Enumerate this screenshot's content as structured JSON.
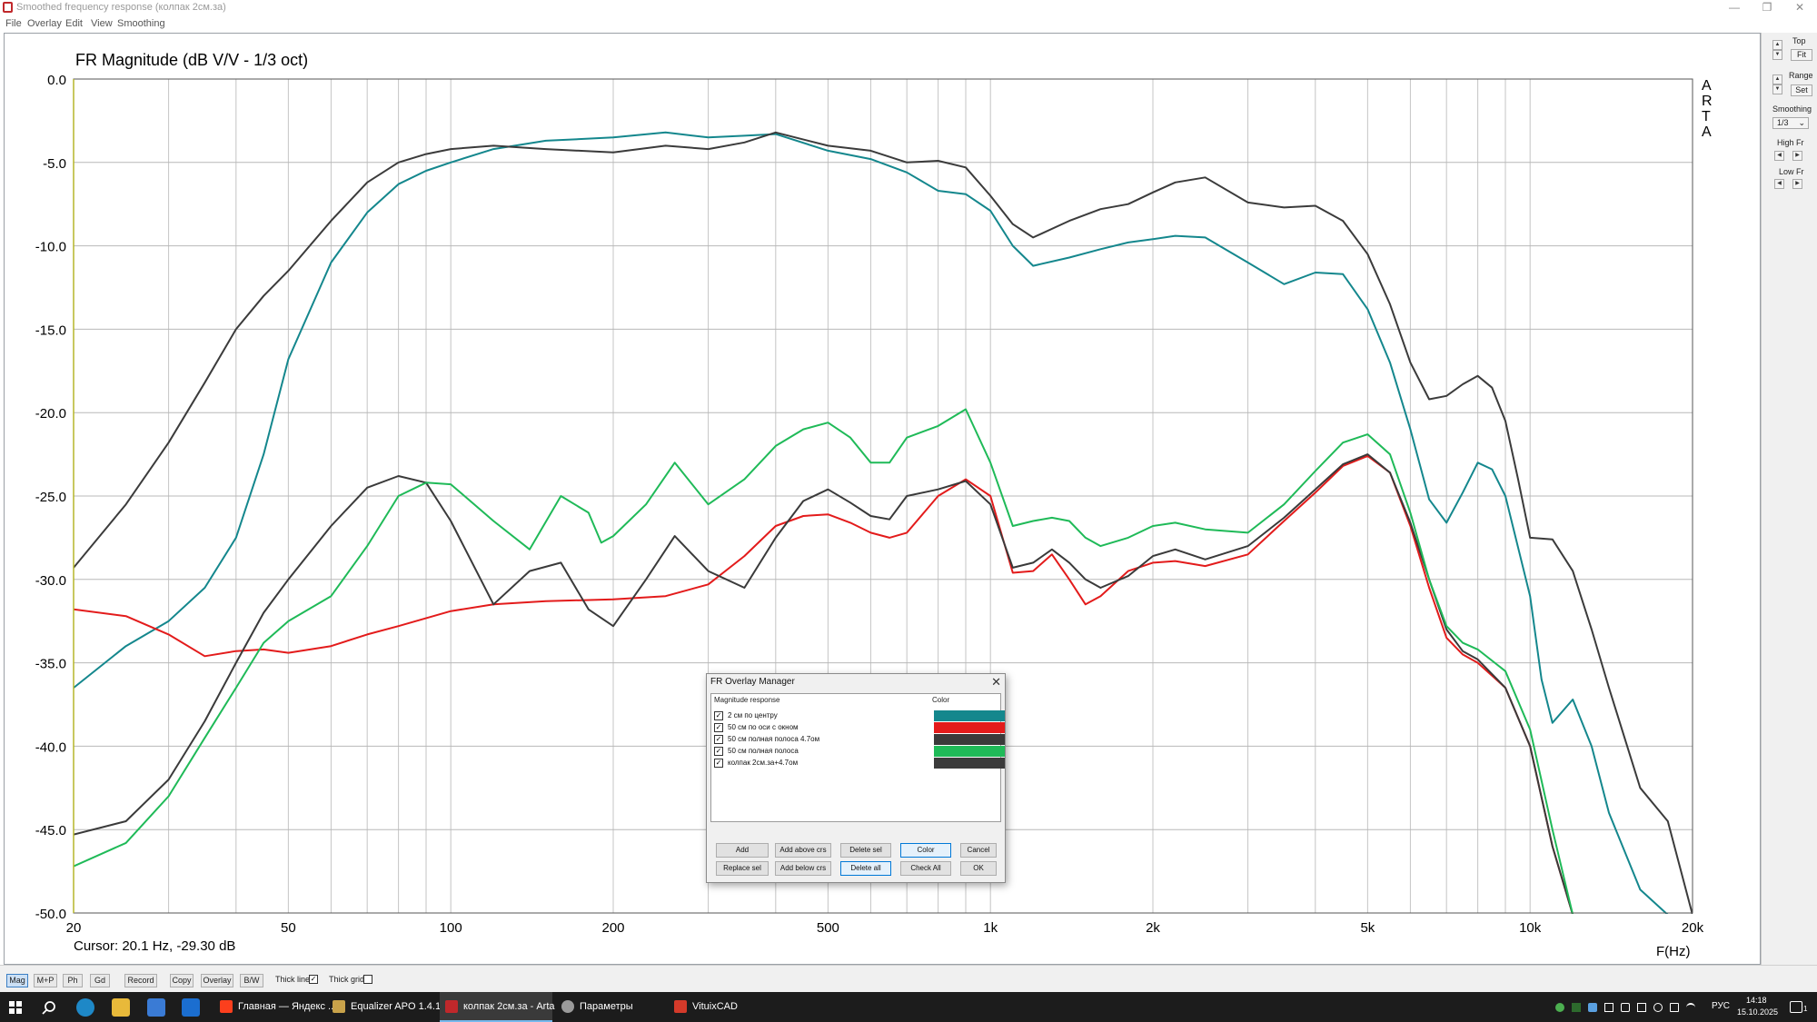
{
  "window": {
    "title": "Smoothed frequency response (колпак 2см.за)",
    "minimize": "—",
    "restore": "❐",
    "close": "✕"
  },
  "menu": [
    "File",
    "Overlay",
    "Edit",
    "View",
    "Smoothing"
  ],
  "chart_data": {
    "type": "line",
    "title": "FR Magnitude (dB V/V - 1/3 oct)",
    "xlabel": "F(Hz)",
    "ylabel": "",
    "x_scale": "log",
    "xlim": [
      20,
      20000
    ],
    "ylim": [
      -50,
      0
    ],
    "grid": true,
    "x_ticks": [
      {
        "value": 20,
        "label": "20"
      },
      {
        "value": 50,
        "label": "50"
      },
      {
        "value": 100,
        "label": "100"
      },
      {
        "value": 200,
        "label": "200"
      },
      {
        "value": 500,
        "label": "500"
      },
      {
        "value": 1000,
        "label": "1k"
      },
      {
        "value": 2000,
        "label": "2k"
      },
      {
        "value": 5000,
        "label": "5k"
      },
      {
        "value": 10000,
        "label": "10k"
      },
      {
        "value": 20000,
        "label": "20k"
      }
    ],
    "y_ticks": [
      {
        "value": 0,
        "label": "0.0"
      },
      {
        "value": -5,
        "label": "-5.0"
      },
      {
        "value": -10,
        "label": "-10.0"
      },
      {
        "value": -15,
        "label": "-15.0"
      },
      {
        "value": -20,
        "label": "-20.0"
      },
      {
        "value": -25,
        "label": "-25.0"
      },
      {
        "value": -30,
        "label": "-30.0"
      },
      {
        "value": -35,
        "label": "-35.0"
      },
      {
        "value": -40,
        "label": "-40.0"
      },
      {
        "value": -45,
        "label": "-45.0"
      },
      {
        "value": -50,
        "label": "-50.0"
      }
    ],
    "series": [
      {
        "name": "2 см по центру",
        "color": "#14878d",
        "x": [
          20,
          25,
          30,
          35,
          40,
          45,
          50,
          60,
          70,
          80,
          90,
          100,
          120,
          150,
          200,
          250,
          300,
          350,
          400,
          500,
          600,
          700,
          800,
          900,
          1000,
          1100,
          1200,
          1400,
          1600,
          1800,
          2000,
          2200,
          2500,
          3000,
          3500,
          4000,
          4500,
          5000,
          5500,
          6000,
          6500,
          7000,
          7500,
          8000,
          8500,
          9000,
          10000,
          10500,
          11000,
          12000,
          13000,
          14000,
          16000,
          18000,
          20000
        ],
        "y": [
          -36.5,
          -34.0,
          -32.5,
          -30.5,
          -27.5,
          -22.5,
          -16.8,
          -11.0,
          -8.0,
          -6.3,
          -5.5,
          -5.0,
          -4.2,
          -3.7,
          -3.5,
          -3.2,
          -3.5,
          -3.4,
          -3.3,
          -4.3,
          -4.8,
          -5.6,
          -6.7,
          -6.9,
          -7.9,
          -10.0,
          -11.2,
          -10.7,
          -10.2,
          -9.8,
          -9.6,
          -9.4,
          -9.5,
          -11.0,
          -12.3,
          -11.6,
          -11.7,
          -13.8,
          -17.0,
          -21.0,
          -25.2,
          -26.6,
          -24.8,
          -23.0,
          -23.4,
          -25.0,
          -31.0,
          -36.0,
          -38.6,
          -37.2,
          -40.0,
          -44.0,
          -48.6,
          -50.2,
          -51.0
        ]
      },
      {
        "name": "50 см по оси с окном",
        "color": "#e31b1b",
        "x": [
          20,
          25,
          30,
          35,
          40,
          45,
          50,
          60,
          70,
          80,
          100,
          120,
          150,
          200,
          250,
          300,
          350,
          400,
          450,
          500,
          550,
          600,
          650,
          700,
          800,
          900,
          1000,
          1100,
          1200,
          1300,
          1400,
          1500,
          1600,
          1800,
          2000,
          2200,
          2500,
          3000,
          3500,
          4000,
          4500,
          5000,
          5500,
          6000,
          6500,
          7000,
          7500,
          8000,
          9000,
          10000,
          11000,
          12000
        ],
        "y": [
          -31.8,
          -32.2,
          -33.3,
          -34.6,
          -34.3,
          -34.2,
          -34.4,
          -34.0,
          -33.3,
          -32.8,
          -31.9,
          -31.5,
          -31.3,
          -31.2,
          -31.0,
          -30.3,
          -28.6,
          -26.8,
          -26.2,
          -26.1,
          -26.6,
          -27.2,
          -27.5,
          -27.2,
          -25.0,
          -24.0,
          -25.0,
          -29.6,
          -29.5,
          -28.5,
          -30.0,
          -31.5,
          -31.0,
          -29.5,
          -29.0,
          -28.9,
          -29.2,
          -28.5,
          -26.5,
          -24.8,
          -23.2,
          -22.6,
          -23.6,
          -26.8,
          -30.5,
          -33.5,
          -34.5,
          -35.0,
          -36.5,
          -40.0,
          -46.0,
          -51.0
        ]
      },
      {
        "name": "50 см полная полоса 4.7ом",
        "color": "#3a3a3a",
        "x": [
          20,
          25,
          30,
          35,
          40,
          45,
          50,
          60,
          70,
          80,
          90,
          100,
          120,
          140,
          160,
          180,
          200,
          230,
          260,
          300,
          350,
          400,
          450,
          500,
          550,
          600,
          650,
          700,
          800,
          900,
          1000,
          1100,
          1200,
          1300,
          1400,
          1500,
          1600,
          1800,
          2000,
          2200,
          2500,
          3000,
          3500,
          4000,
          4500,
          5000,
          5500,
          6000,
          6500,
          7000,
          7500,
          8000,
          9000,
          10000,
          11000,
          12000
        ],
        "y": [
          -45.3,
          -44.5,
          -42.0,
          -38.5,
          -35.0,
          -32.0,
          -30.0,
          -26.8,
          -24.5,
          -23.8,
          -24.2,
          -26.5,
          -31.5,
          -29.5,
          -29.0,
          -31.8,
          -32.8,
          -30.0,
          -27.4,
          -29.5,
          -30.5,
          -27.5,
          -25.3,
          -24.6,
          -25.4,
          -26.2,
          -26.4,
          -25.0,
          -24.6,
          -24.1,
          -25.5,
          -29.3,
          -29.0,
          -28.2,
          -29.0,
          -30.0,
          -30.5,
          -29.8,
          -28.6,
          -28.2,
          -28.8,
          -28.0,
          -26.3,
          -24.6,
          -23.1,
          -22.5,
          -23.6,
          -26.6,
          -30.0,
          -33.0,
          -34.3,
          -34.8,
          -36.5,
          -40.0,
          -46.0,
          -51.0
        ]
      },
      {
        "name": "50 см полная полоса",
        "color": "#1fba58",
        "x": [
          20,
          25,
          30,
          35,
          40,
          45,
          50,
          60,
          70,
          80,
          90,
          100,
          120,
          140,
          160,
          180,
          190,
          200,
          230,
          260,
          300,
          350,
          400,
          450,
          500,
          550,
          600,
          650,
          700,
          800,
          900,
          1000,
          1100,
          1200,
          1300,
          1400,
          1500,
          1600,
          1800,
          2000,
          2200,
          2500,
          3000,
          3500,
          4000,
          4500,
          5000,
          5500,
          6000,
          6500,
          7000,
          7500,
          8000,
          9000,
          10000,
          11000,
          12000
        ],
        "y": [
          -47.2,
          -45.8,
          -43.0,
          -39.5,
          -36.5,
          -33.8,
          -32.5,
          -31.0,
          -28.0,
          -25.0,
          -24.2,
          -24.3,
          -26.5,
          -28.2,
          -25.0,
          -26.0,
          -27.8,
          -27.4,
          -25.5,
          -23.0,
          -25.5,
          -24.0,
          -22.0,
          -21.0,
          -20.6,
          -21.5,
          -23.0,
          -23.0,
          -21.5,
          -20.8,
          -19.8,
          -23.0,
          -26.8,
          -26.5,
          -26.3,
          -26.5,
          -27.5,
          -28.0,
          -27.5,
          -26.8,
          -26.6,
          -27.0,
          -27.2,
          -25.5,
          -23.5,
          -21.8,
          -21.3,
          -22.5,
          -26.0,
          -30.0,
          -32.8,
          -33.8,
          -34.2,
          -35.5,
          -39.0,
          -45.0,
          -50.5
        ]
      },
      {
        "name": "колпак 2см.за+4.7ом",
        "color": "#3b3b3b",
        "x": [
          20,
          25,
          30,
          35,
          40,
          45,
          50,
          60,
          70,
          80,
          90,
          100,
          120,
          150,
          200,
          250,
          300,
          350,
          400,
          500,
          600,
          700,
          800,
          900,
          1000,
          1100,
          1200,
          1400,
          1600,
          1800,
          2000,
          2200,
          2500,
          3000,
          3500,
          4000,
          4500,
          5000,
          5500,
          6000,
          6500,
          7000,
          7500,
          8000,
          8500,
          9000,
          9500,
          10000,
          11000,
          12000,
          13000,
          14000,
          16000,
          18000,
          20000
        ],
        "y": [
          -29.3,
          -25.5,
          -21.8,
          -18.2,
          -15.0,
          -13.0,
          -11.5,
          -8.5,
          -6.2,
          -5.0,
          -4.5,
          -4.2,
          -4.0,
          -4.2,
          -4.4,
          -4.0,
          -4.2,
          -3.8,
          -3.2,
          -4.0,
          -4.3,
          -5.0,
          -4.9,
          -5.3,
          -7.0,
          -8.7,
          -9.5,
          -8.5,
          -7.8,
          -7.5,
          -6.8,
          -6.2,
          -5.9,
          -7.4,
          -7.7,
          -7.6,
          -8.5,
          -10.5,
          -13.5,
          -17.0,
          -19.2,
          -19.0,
          -18.3,
          -17.8,
          -18.5,
          -20.5,
          -24.0,
          -27.5,
          -27.6,
          -29.5,
          -33.0,
          -36.5,
          -42.5,
          -44.5,
          -50.5
        ]
      }
    ]
  },
  "plot": {
    "arta_label": [
      "A",
      "R",
      "T",
      "A"
    ],
    "cursor_readout": "Cursor: 20.1 Hz, -29.30 dB"
  },
  "right_panel": {
    "top_label": "Top",
    "fit_button": "Fit",
    "range_label": "Range",
    "set_button": "Set",
    "smoothing_label": "Smoothing",
    "smoothing_value": "1/3",
    "high_fr_label": "High Fr",
    "low_fr_label": "Low Fr"
  },
  "bottom_bar": {
    "buttons": [
      {
        "label": "Mag",
        "active": true
      },
      {
        "label": "M+P",
        "active": false
      },
      {
        "label": "Ph",
        "active": false
      },
      {
        "label": "Gd",
        "active": false
      },
      {
        "label": "Record",
        "active": false
      },
      {
        "label": "Copy",
        "active": false
      },
      {
        "label": "Overlay",
        "active": false
      },
      {
        "label": "B/W",
        "active": false
      }
    ],
    "thick_line_label": "Thick line",
    "thick_line_checked": "✓",
    "thick_grid_label": "Thick grid"
  },
  "dialog": {
    "title": "FR Overlay Manager",
    "close": "✕",
    "col_magnitude": "Magnitude response",
    "col_color": "Color",
    "rows": [
      {
        "name": "2 см по центру",
        "color": "#14878d",
        "checked": "✓"
      },
      {
        "name": "50 см по оси с окном",
        "color": "#e31b1b",
        "checked": "✓"
      },
      {
        "name": "50 см полная полоса 4.7ом",
        "color": "#3a3a3a",
        "checked": "✓"
      },
      {
        "name": "50 см полная полоса",
        "color": "#1fba58",
        "checked": "✓"
      },
      {
        "name": "колпак 2см.за+4.7ом",
        "color": "#3b3b3b",
        "checked": "✓"
      }
    ],
    "buttons": {
      "add": "Add",
      "add_above": "Add above crs",
      "delete_sel": "Delete sel",
      "color": "Color",
      "cancel": "Cancel",
      "replace_sel": "Replace sel",
      "add_below": "Add below crs",
      "delete_all": "Delete all",
      "check_all": "Check All",
      "ok": "OK"
    }
  },
  "taskbar": {
    "items": [
      {
        "label": "Главная — Яндекс ...",
        "icon_color": "#fc3f1d"
      },
      {
        "label": "Equalizer APO 1.4.1...",
        "icon_color": "#c8a24a"
      },
      {
        "label": "колпак 2см.за - Arta",
        "icon_color": "#c0282b"
      },
      {
        "label": "Параметры",
        "icon_color": "#9a9a9a"
      },
      {
        "label": "VituixCAD",
        "icon_color": "#d43a2a"
      }
    ],
    "lang": "РУС",
    "time": "14:18",
    "date": "15.10.2025",
    "notif_count": "1"
  }
}
